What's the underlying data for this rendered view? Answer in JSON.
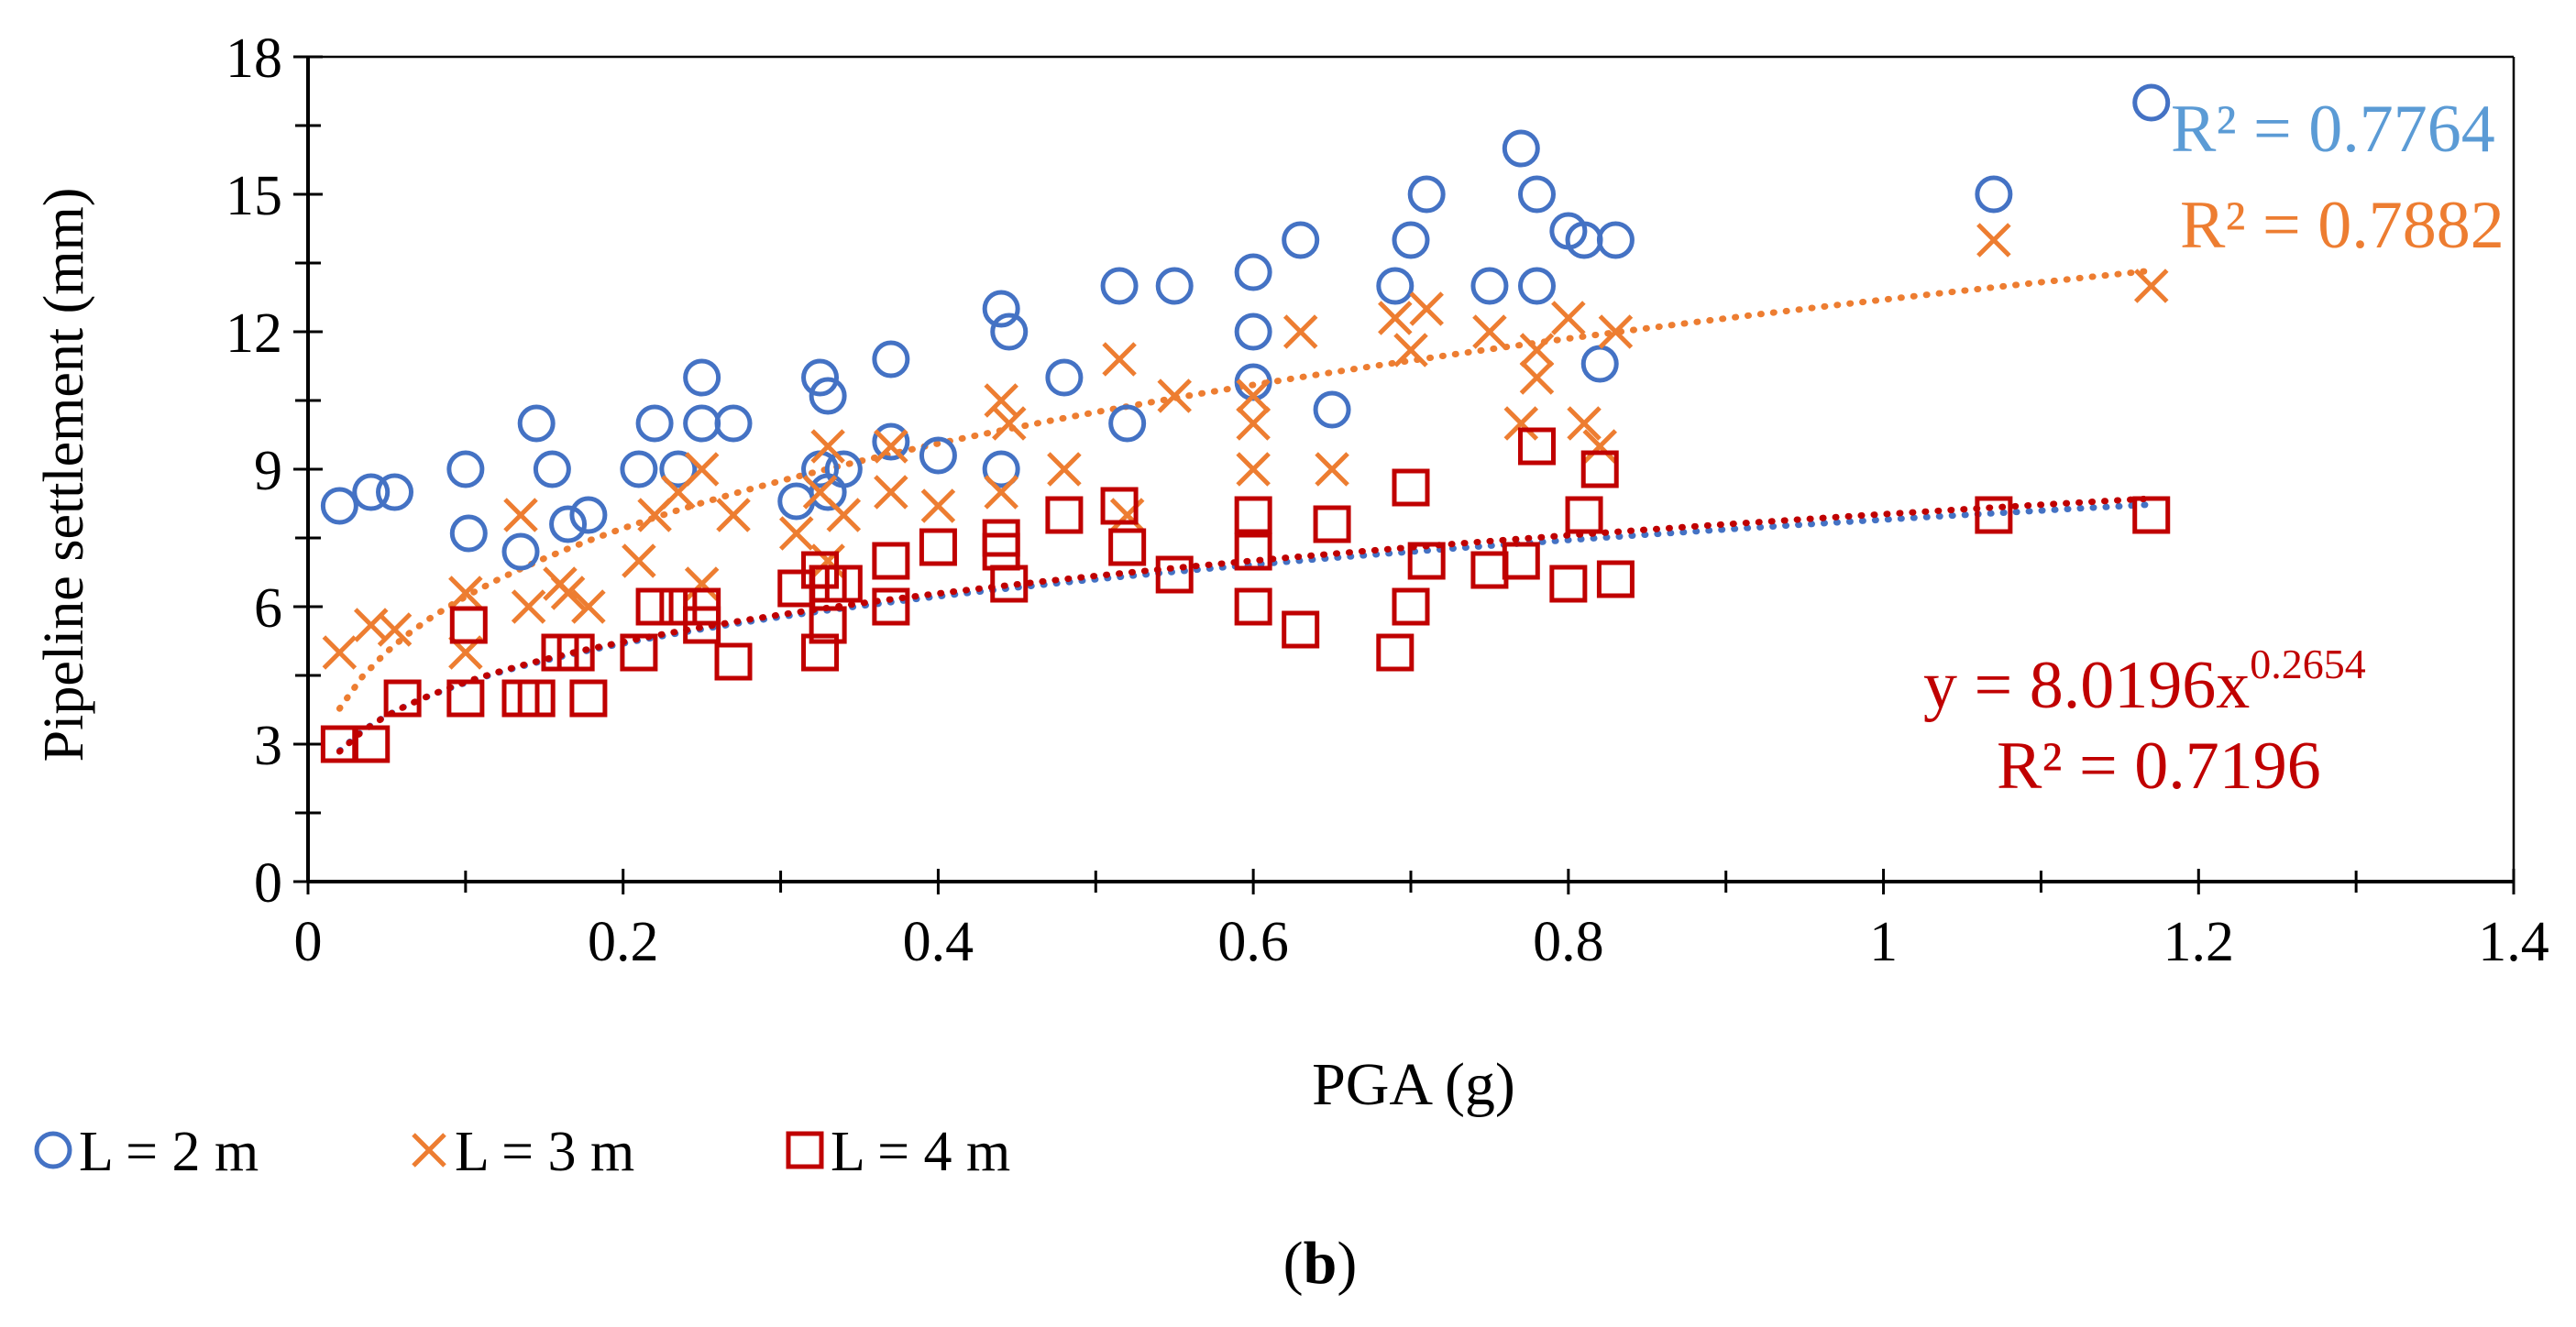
{
  "chart_data": {
    "type": "scatter",
    "xlabel": "PGA (g)",
    "ylabel": "Pipeline settlement (mm)",
    "xlim": [
      0,
      1.4
    ],
    "ylim": [
      0,
      18
    ],
    "x_ticks": [
      "0",
      "0.2",
      "0.4",
      "0.6",
      "0.8",
      "1",
      "1.2",
      "1.4"
    ],
    "y_ticks": [
      "0",
      "3",
      "6",
      "9",
      "12",
      "15",
      "18"
    ],
    "grid": false,
    "legend_position": "bottom-left",
    "panel_label": "(b)",
    "series": [
      {
        "name": "L = 2 m",
        "marker": "circle",
        "color": "#4472C4",
        "annotation_color": "#5B9BD5",
        "trendline": {
          "type": "power",
          "coef": 7.9,
          "exp": 0.26,
          "x_range": [
            0.02,
            1.17
          ],
          "color": "#4472C4"
        },
        "annotation": [
          "R² = 0.7764"
        ],
        "points": [
          [
            0.02,
            8.2
          ],
          [
            0.04,
            8.5
          ],
          [
            0.055,
            8.5
          ],
          [
            0.1,
            9.0
          ],
          [
            0.102,
            7.6
          ],
          [
            0.135,
            7.2
          ],
          [
            0.145,
            10.0
          ],
          [
            0.155,
            9.0
          ],
          [
            0.165,
            7.8
          ],
          [
            0.178,
            8.0
          ],
          [
            0.21,
            9.0
          ],
          [
            0.22,
            10.0
          ],
          [
            0.235,
            9.0
          ],
          [
            0.25,
            10.0
          ],
          [
            0.25,
            11.0
          ],
          [
            0.27,
            10.0
          ],
          [
            0.31,
            8.3
          ],
          [
            0.325,
            9.0
          ],
          [
            0.325,
            11.0
          ],
          [
            0.33,
            10.6
          ],
          [
            0.33,
            8.5
          ],
          [
            0.34,
            9.0
          ],
          [
            0.37,
            9.6
          ],
          [
            0.37,
            11.4
          ],
          [
            0.4,
            9.3
          ],
          [
            0.44,
            9.0
          ],
          [
            0.44,
            12.5
          ],
          [
            0.445,
            12.0
          ],
          [
            0.48,
            11.0
          ],
          [
            0.515,
            13.0
          ],
          [
            0.52,
            10.0
          ],
          [
            0.55,
            13.0
          ],
          [
            0.6,
            12.0
          ],
          [
            0.6,
            13.3
          ],
          [
            0.6,
            10.9
          ],
          [
            0.63,
            14.0
          ],
          [
            0.65,
            10.3
          ],
          [
            0.69,
            13.0
          ],
          [
            0.7,
            14.0
          ],
          [
            0.71,
            15.0
          ],
          [
            0.75,
            13.0
          ],
          [
            0.77,
            16.0
          ],
          [
            0.78,
            15.0
          ],
          [
            0.78,
            13.0
          ],
          [
            0.8,
            14.2
          ],
          [
            0.81,
            14.0
          ],
          [
            0.82,
            11.3
          ],
          [
            0.83,
            14.0
          ],
          [
            1.07,
            15.0
          ],
          [
            1.17,
            17.0
          ]
        ]
      },
      {
        "name": "L = 3 m",
        "marker": "x",
        "color": "#ED7D31",
        "annotation_color": "#ED7D31",
        "trendline": {
          "type": "power",
          "coef": 12.7,
          "exp": 0.31,
          "x_range": [
            0.02,
            1.17
          ],
          "color": "#ED7D31"
        },
        "annotation": [
          "R² = 0.7882"
        ],
        "points": [
          [
            0.02,
            5.0
          ],
          [
            0.04,
            5.6
          ],
          [
            0.055,
            5.5
          ],
          [
            0.1,
            5.0
          ],
          [
            0.1,
            6.3
          ],
          [
            0.135,
            8.0
          ],
          [
            0.14,
            6.0
          ],
          [
            0.16,
            6.5
          ],
          [
            0.165,
            6.3
          ],
          [
            0.178,
            6.0
          ],
          [
            0.21,
            7.0
          ],
          [
            0.22,
            8.0
          ],
          [
            0.235,
            8.5
          ],
          [
            0.25,
            9.0
          ],
          [
            0.25,
            6.5
          ],
          [
            0.27,
            8.0
          ],
          [
            0.31,
            7.6
          ],
          [
            0.325,
            8.5
          ],
          [
            0.33,
            9.5
          ],
          [
            0.33,
            7.0
          ],
          [
            0.34,
            8.0
          ],
          [
            0.37,
            8.5
          ],
          [
            0.37,
            9.5
          ],
          [
            0.4,
            8.2
          ],
          [
            0.44,
            8.5
          ],
          [
            0.44,
            10.5
          ],
          [
            0.445,
            10.0
          ],
          [
            0.48,
            9.0
          ],
          [
            0.515,
            11.4
          ],
          [
            0.52,
            8.0
          ],
          [
            0.55,
            10.6
          ],
          [
            0.6,
            9.0
          ],
          [
            0.6,
            10.0
          ],
          [
            0.6,
            10.6
          ],
          [
            0.63,
            12.0
          ],
          [
            0.65,
            9.0
          ],
          [
            0.69,
            12.3
          ],
          [
            0.7,
            11.6
          ],
          [
            0.71,
            12.5
          ],
          [
            0.75,
            12.0
          ],
          [
            0.77,
            10.0
          ],
          [
            0.78,
            11.0
          ],
          [
            0.78,
            11.6
          ],
          [
            0.8,
            12.3
          ],
          [
            0.81,
            10.0
          ],
          [
            0.82,
            9.5
          ],
          [
            0.83,
            12.0
          ],
          [
            1.07,
            14.0
          ],
          [
            1.17,
            13.0
          ]
        ]
      },
      {
        "name": "L = 4 m",
        "marker": "square",
        "color": "#C00000",
        "annotation_color": "#C00000",
        "trendline": {
          "type": "power",
          "coef": 8.0196,
          "exp": 0.2654,
          "x_range": [
            0.02,
            1.17
          ],
          "color": "#C00000"
        },
        "annotation": [
          "y = 8.0196x",
          "0.2654",
          "R² = 0.7196"
        ],
        "points": [
          [
            0.02,
            3.0
          ],
          [
            0.04,
            3.0
          ],
          [
            0.06,
            4.0
          ],
          [
            0.1,
            4.0
          ],
          [
            0.102,
            5.6
          ],
          [
            0.135,
            4.0
          ],
          [
            0.145,
            4.0
          ],
          [
            0.16,
            5.0
          ],
          [
            0.17,
            5.0
          ],
          [
            0.178,
            4.0
          ],
          [
            0.21,
            5.0
          ],
          [
            0.22,
            6.0
          ],
          [
            0.235,
            6.0
          ],
          [
            0.25,
            6.0
          ],
          [
            0.25,
            5.6
          ],
          [
            0.27,
            4.8
          ],
          [
            0.31,
            6.4
          ],
          [
            0.325,
            6.8
          ],
          [
            0.325,
            5.0
          ],
          [
            0.33,
            6.5
          ],
          [
            0.33,
            5.6
          ],
          [
            0.34,
            6.5
          ],
          [
            0.37,
            7.0
          ],
          [
            0.37,
            6.0
          ],
          [
            0.4,
            7.3
          ],
          [
            0.44,
            7.2
          ],
          [
            0.44,
            7.5
          ],
          [
            0.445,
            6.5
          ],
          [
            0.48,
            8.0
          ],
          [
            0.515,
            8.2
          ],
          [
            0.52,
            7.3
          ],
          [
            0.55,
            6.7
          ],
          [
            0.6,
            8.0
          ],
          [
            0.6,
            7.2
          ],
          [
            0.6,
            6.0
          ],
          [
            0.63,
            5.5
          ],
          [
            0.65,
            7.8
          ],
          [
            0.69,
            5.0
          ],
          [
            0.7,
            8.6
          ],
          [
            0.7,
            6.0
          ],
          [
            0.71,
            7.0
          ],
          [
            0.75,
            6.8
          ],
          [
            0.77,
            7.0
          ],
          [
            0.78,
            9.5
          ],
          [
            0.8,
            6.5
          ],
          [
            0.81,
            8.0
          ],
          [
            0.82,
            9.0
          ],
          [
            0.83,
            6.6
          ],
          [
            1.07,
            8.0
          ],
          [
            1.17,
            8.0
          ]
        ]
      }
    ]
  }
}
